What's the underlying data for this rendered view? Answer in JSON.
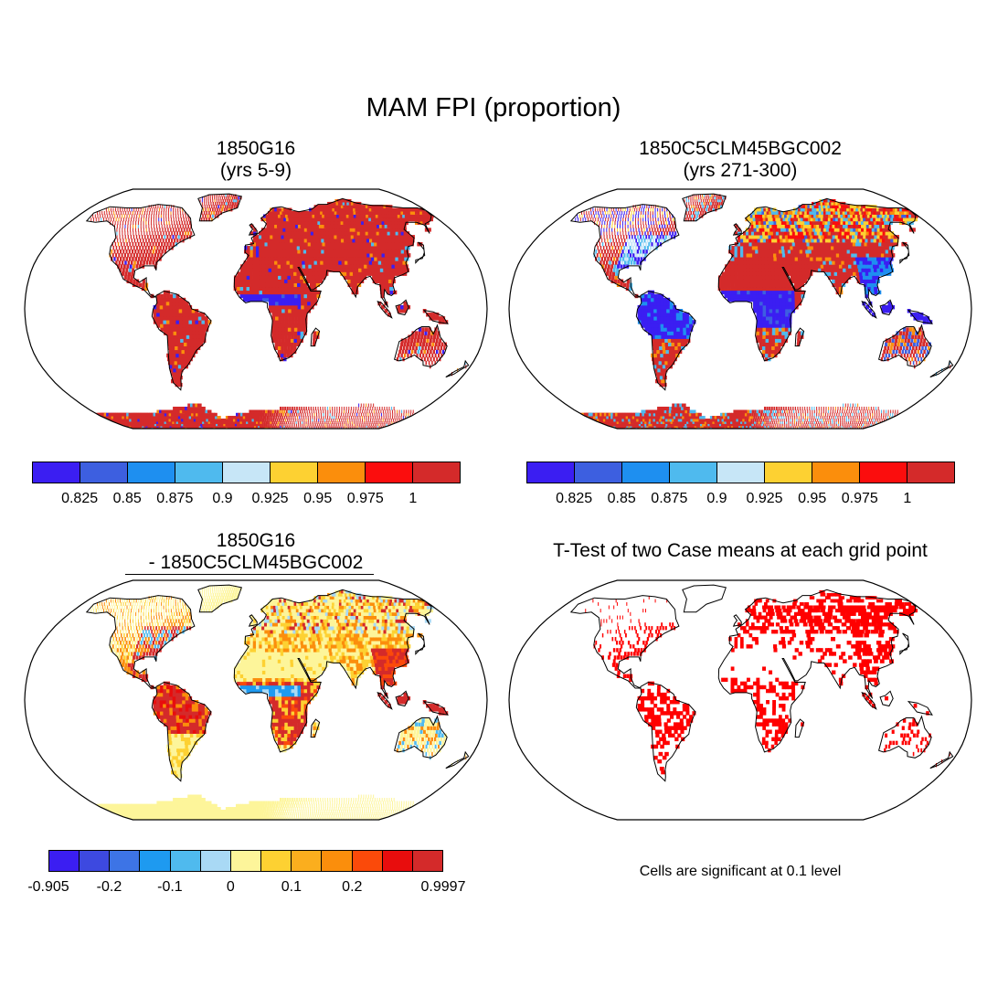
{
  "title": "MAM FPI (proportion)",
  "panels": [
    {
      "id": "p1",
      "title_line1": "1850G16",
      "title_line2": "(yrs 5-9)"
    },
    {
      "id": "p2",
      "title_line1": "1850C5CLM45BGC002",
      "title_line2": "(yrs 271-300)"
    },
    {
      "id": "p3",
      "title_line1": "1850G16",
      "title_line2": "- 1850C5CLM45BGC002"
    },
    {
      "id": "p4",
      "title_line1": "T-Test of two Case means at each grid point"
    }
  ],
  "colorbar_top": {
    "colors": [
      "#3b1ef2",
      "#3d5fe0",
      "#1e8ff0",
      "#4fbaee",
      "#c7e6f7",
      "#fdd132",
      "#fb8e0c",
      "#fb0d0d",
      "#d42a2a"
    ],
    "labels": [
      "0.825",
      "0.85",
      "0.875",
      "0.9",
      "0.925",
      "0.95",
      "0.975",
      "1"
    ]
  },
  "colorbar_diff": {
    "colors": [
      "#3b1ef2",
      "#3d49e0",
      "#3d74e6",
      "#1e9af0",
      "#4fbaee",
      "#a9d9f5",
      "#fdf59a",
      "#fdd132",
      "#fbae1e",
      "#fb8e0c",
      "#fb4a0a",
      "#e80d0d",
      "#d42a2a"
    ],
    "labels": [
      "-0.905",
      "-0.2",
      "-0.1",
      "0",
      "0.1",
      "0.2",
      "0.9997"
    ]
  },
  "significance_note": "Cells are significant at 0.1 level",
  "legend_colors": {
    "land_high": "#d42a2a",
    "significant": "#ff0000"
  }
}
